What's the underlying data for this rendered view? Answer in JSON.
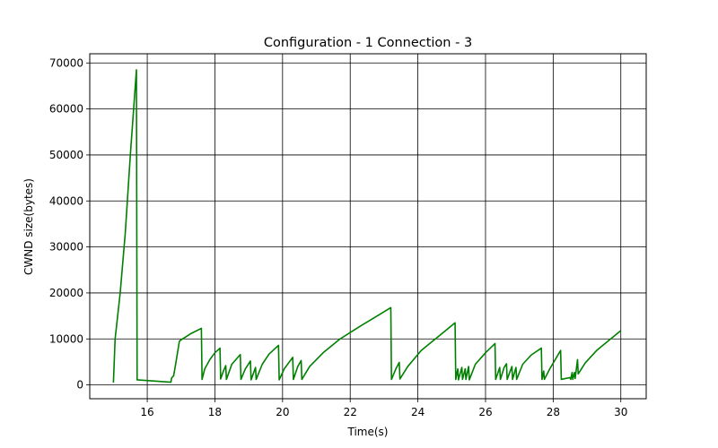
{
  "chart_data": {
    "type": "line",
    "title": "Configuration - 1 Connection - 3",
    "xlabel": "Time(s)",
    "ylabel": "CWND size(bytes)",
    "xlim": [
      14.3,
      30.75
    ],
    "ylim": [
      -3000,
      72000
    ],
    "xticks": [
      16,
      18,
      20,
      22,
      24,
      26,
      28,
      30
    ],
    "yticks": [
      0,
      10000,
      20000,
      30000,
      40000,
      50000,
      60000,
      70000
    ],
    "grid": true,
    "series": [
      {
        "color": "#008000",
        "points": [
          [
            15.0,
            500
          ],
          [
            15.05,
            10000
          ],
          [
            15.2,
            20000
          ],
          [
            15.35,
            33000
          ],
          [
            15.5,
            50000
          ],
          [
            15.68,
            68500
          ],
          [
            15.7,
            1100
          ],
          [
            16.7,
            600
          ],
          [
            16.72,
            1500
          ],
          [
            16.78,
            2000
          ],
          [
            16.85,
            5000
          ],
          [
            16.95,
            9500
          ],
          [
            17.0,
            9800
          ],
          [
            17.3,
            11200
          ],
          [
            17.6,
            12300
          ],
          [
            17.62,
            1200
          ],
          [
            17.7,
            3500
          ],
          [
            17.85,
            5500
          ],
          [
            18.0,
            7000
          ],
          [
            18.15,
            8000
          ],
          [
            18.17,
            1300
          ],
          [
            18.25,
            3000
          ],
          [
            18.32,
            4200
          ],
          [
            18.34,
            1200
          ],
          [
            18.5,
            4500
          ],
          [
            18.75,
            6600
          ],
          [
            18.77,
            1200
          ],
          [
            18.9,
            3500
          ],
          [
            19.05,
            5200
          ],
          [
            19.07,
            1100
          ],
          [
            19.2,
            3800
          ],
          [
            19.22,
            1200
          ],
          [
            19.4,
            4500
          ],
          [
            19.6,
            6700
          ],
          [
            19.88,
            8600
          ],
          [
            19.9,
            1100
          ],
          [
            20.05,
            3500
          ],
          [
            20.3,
            6000
          ],
          [
            20.32,
            1200
          ],
          [
            20.45,
            4000
          ],
          [
            20.55,
            5300
          ],
          [
            20.57,
            1200
          ],
          [
            20.8,
            4000
          ],
          [
            21.2,
            7000
          ],
          [
            21.7,
            10000
          ],
          [
            22.3,
            12800
          ],
          [
            22.8,
            15000
          ],
          [
            23.2,
            16800
          ],
          [
            23.22,
            1200
          ],
          [
            23.35,
            3500
          ],
          [
            23.45,
            4900
          ],
          [
            23.47,
            1300
          ],
          [
            23.7,
            4000
          ],
          [
            24.1,
            7500
          ],
          [
            24.6,
            10500
          ],
          [
            25.1,
            13500
          ],
          [
            25.12,
            1200
          ],
          [
            25.18,
            3500
          ],
          [
            25.2,
            1100
          ],
          [
            25.3,
            3800
          ],
          [
            25.32,
            1200
          ],
          [
            25.4,
            3500
          ],
          [
            25.42,
            1200
          ],
          [
            25.5,
            4000
          ],
          [
            25.52,
            1100
          ],
          [
            25.7,
            4500
          ],
          [
            26.0,
            7000
          ],
          [
            26.28,
            9000
          ],
          [
            26.3,
            1200
          ],
          [
            26.42,
            3800
          ],
          [
            26.44,
            1200
          ],
          [
            26.55,
            3800
          ],
          [
            26.62,
            4600
          ],
          [
            26.64,
            1200
          ],
          [
            26.78,
            4000
          ],
          [
            26.8,
            1200
          ],
          [
            26.9,
            3800
          ],
          [
            26.92,
            1200
          ],
          [
            27.1,
            4500
          ],
          [
            27.35,
            6500
          ],
          [
            27.65,
            8000
          ],
          [
            27.67,
            1200
          ],
          [
            27.72,
            3000
          ],
          [
            27.74,
            1200
          ],
          [
            27.9,
            3500
          ],
          [
            28.1,
            6000
          ],
          [
            28.22,
            7500
          ],
          [
            28.24,
            1200
          ],
          [
            28.5,
            1600
          ],
          [
            28.52,
            1200
          ],
          [
            28.56,
            2700
          ],
          [
            28.58,
            1200
          ],
          [
            28.63,
            2700
          ],
          [
            28.65,
            1400
          ],
          [
            28.72,
            5500
          ],
          [
            28.74,
            2400
          ],
          [
            28.95,
            4800
          ],
          [
            29.3,
            7600
          ],
          [
            29.7,
            10000
          ],
          [
            30.0,
            11800
          ]
        ]
      }
    ]
  }
}
